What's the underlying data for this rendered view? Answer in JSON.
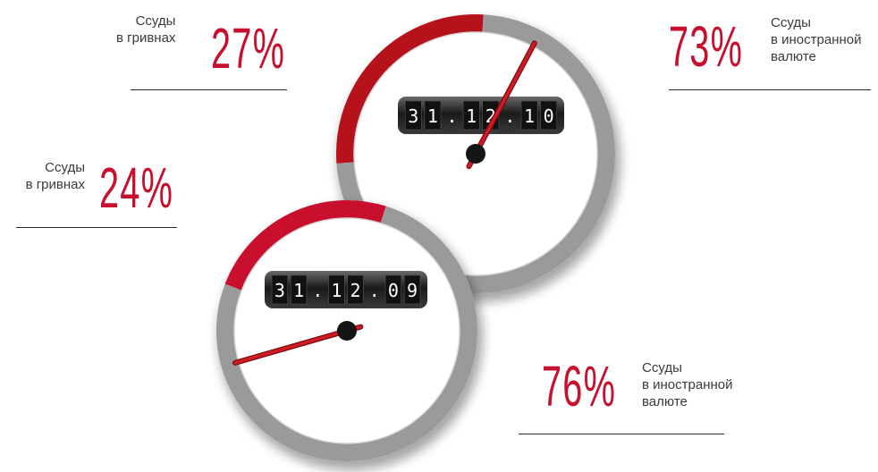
{
  "chart_data": [
    {
      "type": "pie",
      "date": "31.12.10",
      "series": [
        {
          "name": "Ссуды в гривнах",
          "value": 27,
          "label": "27%",
          "color": "#b5121b"
        },
        {
          "name": "Ссуды в иностранной валюте",
          "value": 73,
          "label": "73%",
          "color": "#9a9a9a"
        }
      ]
    },
    {
      "type": "pie",
      "date": "31.12.09",
      "series": [
        {
          "name": "Ссуды в гривнах",
          "value": 24,
          "label": "24%",
          "color": "#c8102e"
        },
        {
          "name": "Ссуды в иностранной валюте",
          "value": 76,
          "label": "76%",
          "color": "#9a9a9a"
        }
      ]
    }
  ],
  "labels": {
    "uah_line1": "Ссуды",
    "uah_line2": "в гривнах",
    "fx_line1": "Ссуды",
    "fx_line2": "в иностранной",
    "fx_line3": "валюте"
  },
  "callouts": {
    "top_uah_pct": "27%",
    "top_fx_pct": "73%",
    "bottom_uah_pct": "24%",
    "bottom_fx_pct": "76%"
  },
  "colors": {
    "accent": "#c8102e",
    "dark_red": "#9c0f16",
    "grey": "#9a9a9a",
    "needle": "#d01a24"
  }
}
